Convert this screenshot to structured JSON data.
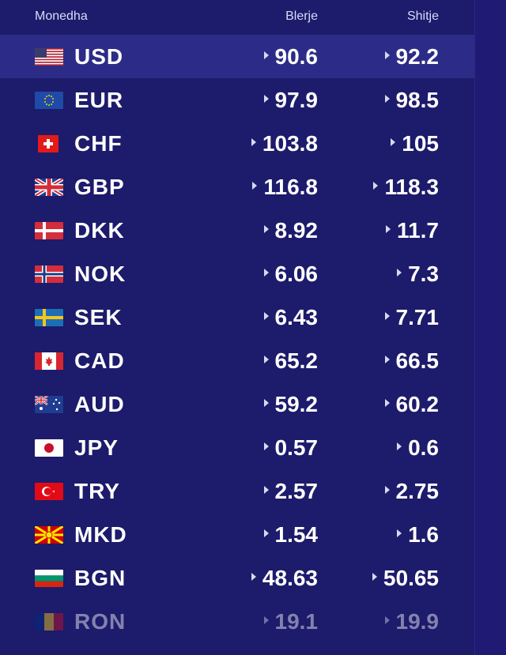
{
  "header": {
    "currency_label": "Monedha",
    "buy_label": "Blerje",
    "sell_label": "Shitje"
  },
  "rows": [
    {
      "code": "USD",
      "buy": "90.6",
      "sell": "92.2",
      "flag": "usa-flag-icon"
    },
    {
      "code": "EUR",
      "buy": "97.9",
      "sell": "98.5",
      "flag": "eu-flag-icon"
    },
    {
      "code": "CHF",
      "buy": "103.8",
      "sell": "105",
      "flag": "switzerland-flag-icon"
    },
    {
      "code": "GBP",
      "buy": "116.8",
      "sell": "118.3",
      "flag": "uk-flag-icon"
    },
    {
      "code": "DKK",
      "buy": "8.92",
      "sell": "11.7",
      "flag": "denmark-flag-icon"
    },
    {
      "code": "NOK",
      "buy": "6.06",
      "sell": "7.3",
      "flag": "norway-flag-icon"
    },
    {
      "code": "SEK",
      "buy": "6.43",
      "sell": "7.71",
      "flag": "sweden-flag-icon"
    },
    {
      "code": "CAD",
      "buy": "65.2",
      "sell": "66.5",
      "flag": "canada-flag-icon"
    },
    {
      "code": "AUD",
      "buy": "59.2",
      "sell": "60.2",
      "flag": "australia-flag-icon"
    },
    {
      "code": "JPY",
      "buy": "0.57",
      "sell": "0.6",
      "flag": "japan-flag-icon"
    },
    {
      "code": "TRY",
      "buy": "2.57",
      "sell": "2.75",
      "flag": "turkey-flag-icon"
    },
    {
      "code": "MKD",
      "buy": "1.54",
      "sell": "1.6",
      "flag": "north-macedonia-flag-icon"
    },
    {
      "code": "BGN",
      "buy": "48.63",
      "sell": "50.65",
      "flag": "bulgaria-flag-icon"
    },
    {
      "code": "RON",
      "buy": "19.1",
      "sell": "19.9",
      "flag": "romania-flag-icon"
    }
  ],
  "colors": {
    "background": "#1d1b6b",
    "active_row": "#2c2c88",
    "text": "#ffffff",
    "header_text": "#d9dbf7"
  }
}
